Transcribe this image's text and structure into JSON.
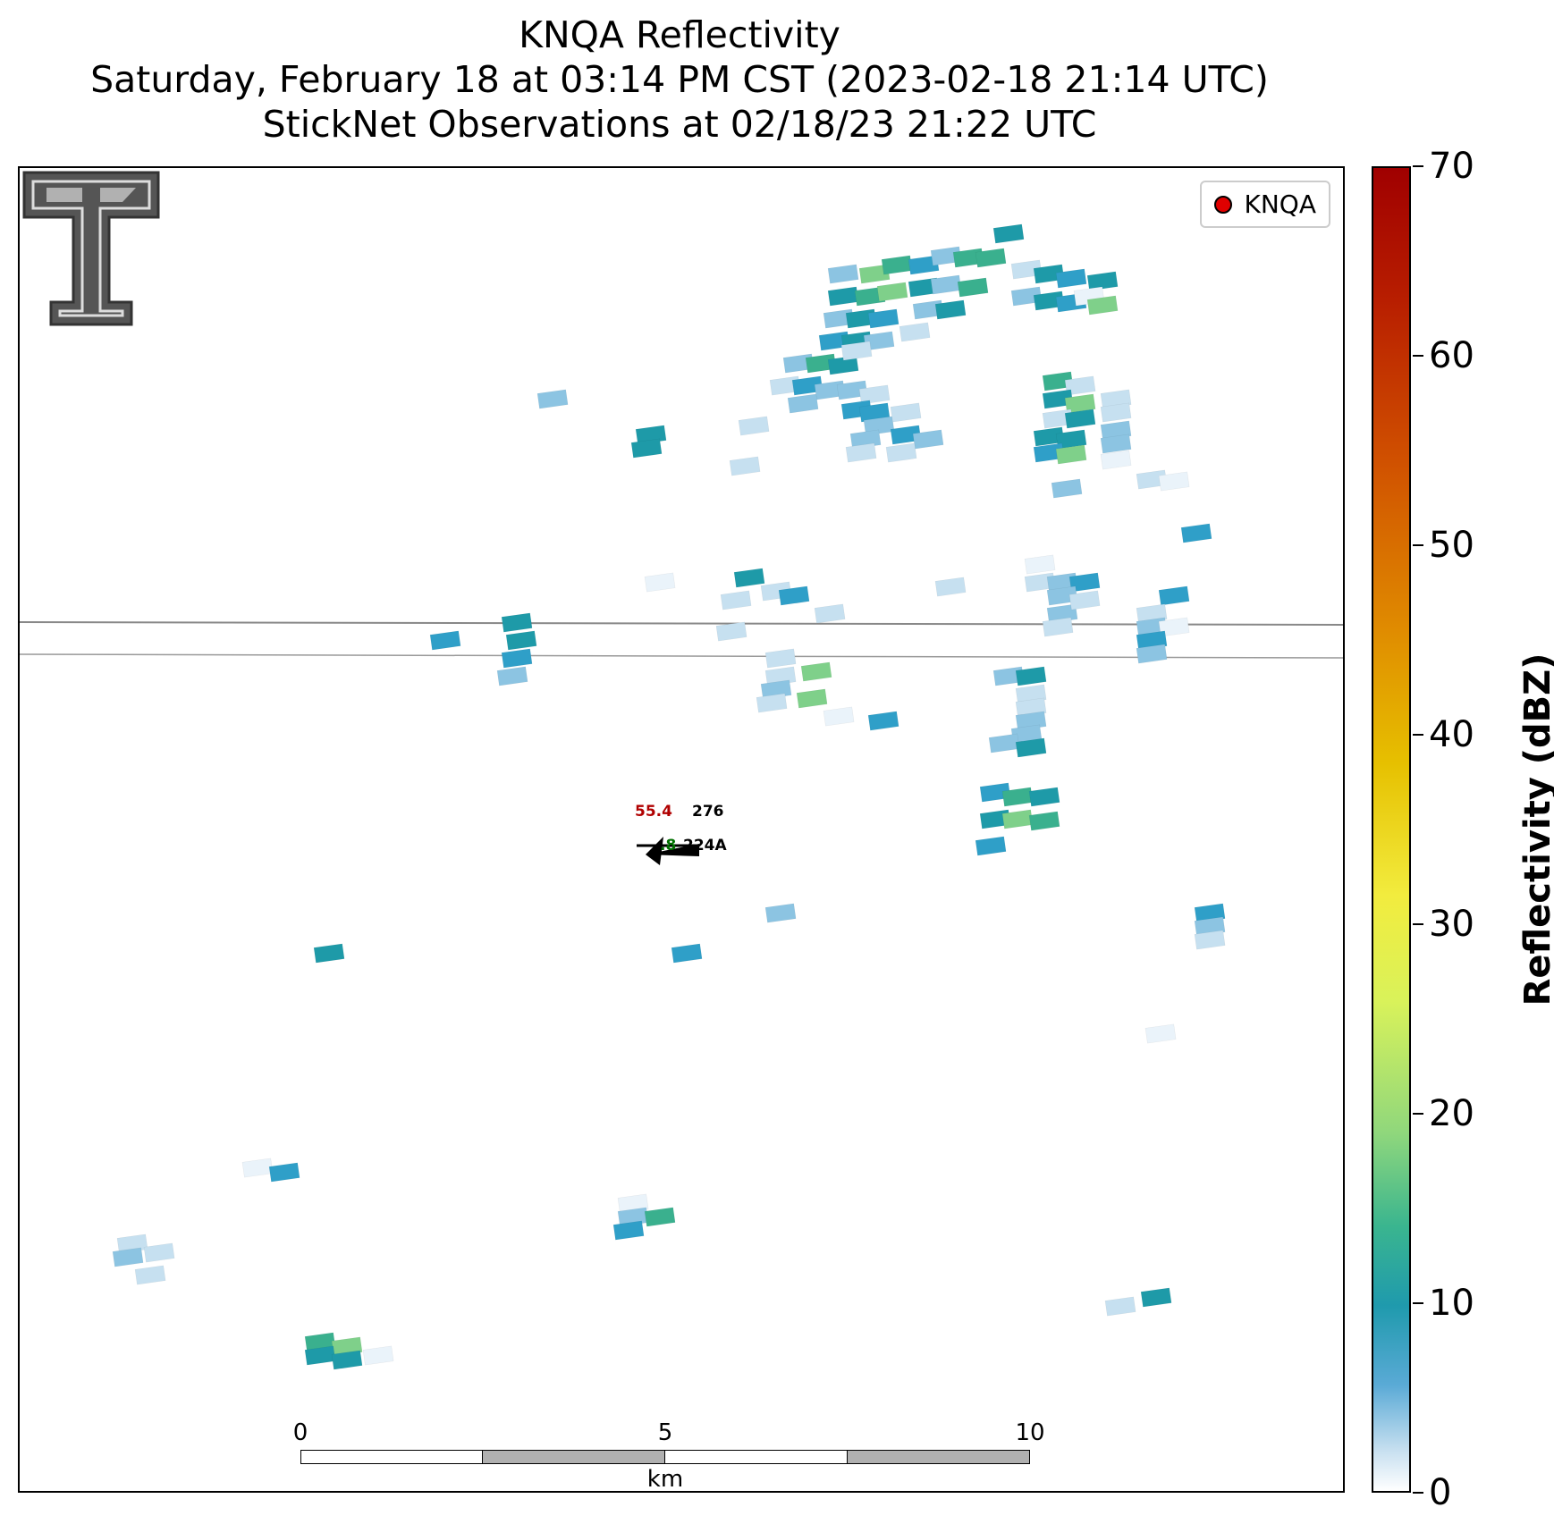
{
  "header": {
    "title_line1": "KNQA Reflectivity",
    "title_line2": "Saturday, February 18 at 03:14 PM CST (2023-02-18 21:14 UTC)",
    "title_line3": "StickNet Observations at 02/18/23 21:22 UTC"
  },
  "legend": {
    "label": "KNQA",
    "marker_color": "#e00000"
  },
  "station": {
    "id": "224A",
    "temperature": "55.4",
    "dewpoint_partial": ".8",
    "pressure": "276"
  },
  "scalebar": {
    "ticks": [
      "0",
      "5",
      "10"
    ],
    "unit": "km"
  },
  "colorbar": {
    "label": "Reflectivity (dBZ)",
    "ticks": [
      "0",
      "10",
      "20",
      "30",
      "40",
      "50",
      "60",
      "70"
    ],
    "range": [
      0,
      70
    ]
  }
}
